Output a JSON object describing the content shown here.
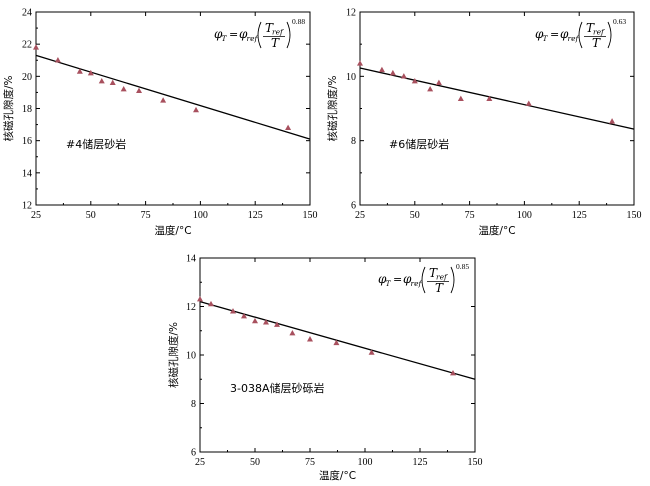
{
  "chart_data": [
    {
      "type": "scatter",
      "label": "#4储层砂岩",
      "xlabel": "温度/°C",
      "ylabel": "核磁孔隙度/%",
      "xlim": [
        25,
        150
      ],
      "ylim": [
        12,
        24
      ],
      "xticks": [
        25,
        50,
        75,
        100,
        125,
        150
      ],
      "yticks": [
        12,
        14,
        16,
        18,
        20,
        22,
        24
      ],
      "points": {
        "x": [
          25,
          35,
          45,
          50,
          55,
          60,
          65,
          72,
          83,
          98,
          140
        ],
        "y": [
          21.8,
          21.0,
          20.3,
          20.2,
          19.7,
          19.6,
          19.2,
          19.1,
          18.5,
          17.9,
          16.8
        ]
      },
      "fit": {
        "x": [
          25,
          150
        ],
        "y": [
          21.3,
          16.1
        ]
      },
      "formula": {
        "lhs": "φ",
        "lhs_sub": "T",
        "eq": "=",
        "rhs": "φ",
        "rhs_sub": "ref",
        "num": "T",
        "num_sub": "ref",
        "den": "T",
        "exponent": "0.88"
      },
      "marker_color": "#a8505e",
      "line_color": "#000000",
      "grid": false
    },
    {
      "type": "scatter",
      "label": "#6储层砂岩",
      "xlabel": "温度/°C",
      "ylabel": "核磁孔隙度/%",
      "xlim": [
        25,
        150
      ],
      "ylim": [
        6,
        12
      ],
      "xticks": [
        25,
        50,
        75,
        100,
        125,
        150
      ],
      "yticks": [
        6,
        8,
        10,
        12
      ],
      "points": {
        "x": [
          25,
          35,
          40,
          45,
          50,
          57,
          61,
          71,
          84,
          102,
          140
        ],
        "y": [
          10.4,
          10.2,
          10.1,
          10.0,
          9.85,
          9.6,
          9.8,
          9.3,
          9.3,
          9.15,
          8.6
        ]
      },
      "fit": {
        "x": [
          25,
          150
        ],
        "y": [
          10.26,
          8.36
        ]
      },
      "formula": {
        "lhs": "φ",
        "lhs_sub": "T",
        "eq": "=",
        "rhs": "φ",
        "rhs_sub": "ref",
        "num": "T",
        "num_sub": "ref",
        "den": "T",
        "exponent": "0.63"
      },
      "marker_color": "#a8505e",
      "line_color": "#000000",
      "grid": false
    },
    {
      "type": "scatter",
      "label": "3-038A储层砂砾岩",
      "xlabel": "温度/°C",
      "ylabel": "核磁孔隙度/%",
      "xlim": [
        25,
        150
      ],
      "ylim": [
        6,
        14
      ],
      "xticks": [
        25,
        50,
        75,
        100,
        125,
        150
      ],
      "yticks": [
        6,
        8,
        10,
        12,
        14
      ],
      "points": {
        "x": [
          25,
          30,
          40,
          45,
          50,
          55,
          60,
          67,
          75,
          87,
          103,
          140
        ],
        "y": [
          12.3,
          12.1,
          11.8,
          11.6,
          11.4,
          11.35,
          11.25,
          10.9,
          10.65,
          10.5,
          10.1,
          9.25
        ]
      },
      "fit": {
        "x": [
          25,
          150
        ],
        "y": [
          12.2,
          9.0
        ]
      },
      "formula": {
        "lhs": "φ",
        "lhs_sub": "T",
        "eq": "=",
        "rhs": "φ",
        "rhs_sub": "ref",
        "num": "T",
        "num_sub": "ref",
        "den": "T",
        "exponent": "0.85"
      },
      "marker_color": "#a8505e",
      "line_color": "#000000",
      "grid": false
    }
  ]
}
